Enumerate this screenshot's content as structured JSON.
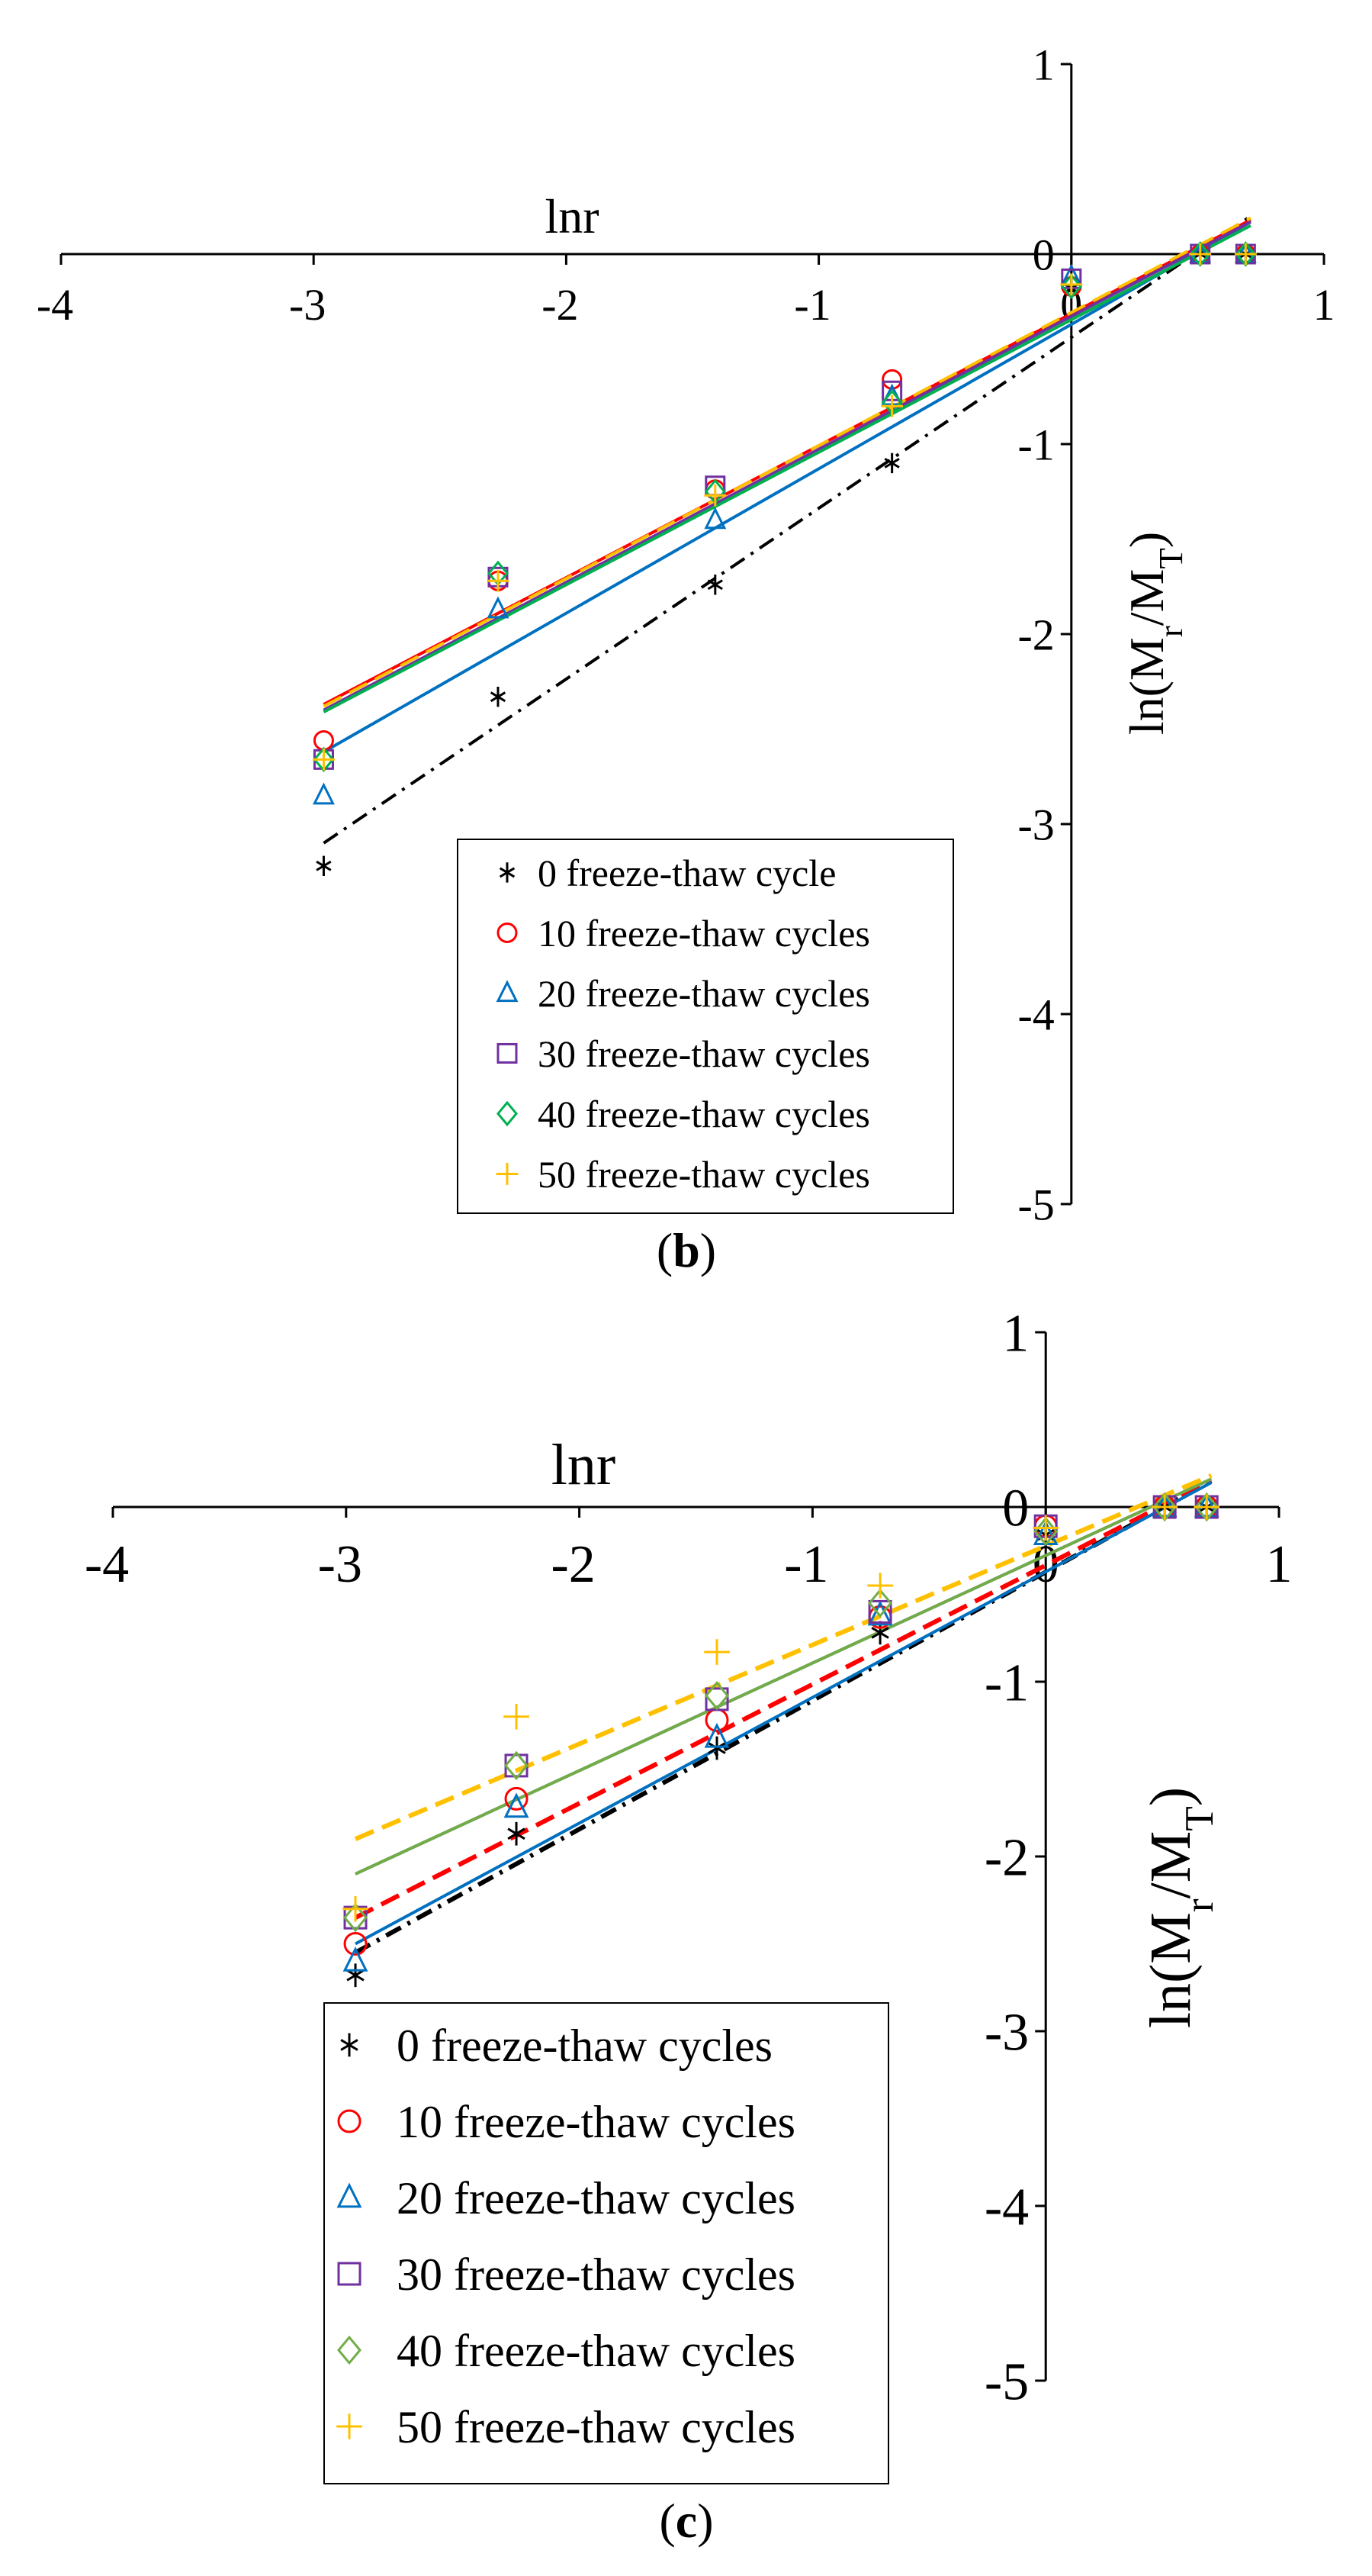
{
  "chart_data": [
    {
      "type": "scatter",
      "panel_label": "b",
      "xlabel": "lnr",
      "ylabel": "ln(M",
      "ylabel_sub1": "r",
      "ylabel_mid": "/M",
      "ylabel_sub2": "T",
      "ylabel_end": ")",
      "xlim": [
        -4,
        1
      ],
      "ylim": [
        -5,
        1
      ],
      "x_ticks": [
        "-4",
        "-3",
        "-2",
        "-1",
        "0",
        "1"
      ],
      "y_ticks": [
        "1",
        "0",
        "-1",
        "-2",
        "-3",
        "-4",
        "-5"
      ],
      "legend_position": "bottom-center",
      "x": [
        -2.96,
        -2.27,
        -1.41,
        -0.71,
        0.0,
        0.51,
        0.69
      ],
      "series": [
        {
          "name": "0 freeze-thaw cycle",
          "marker": "asterisk",
          "color": "#000000",
          "line": "dashdot",
          "values": [
            -3.22,
            -2.33,
            -1.74,
            -1.1,
            -0.18,
            0.0,
            0.0
          ],
          "fit": [
            -3.1,
            0.2
          ]
        },
        {
          "name": "10 freeze-thaw cycles",
          "marker": "circle",
          "color": "#ff0000",
          "line": "solid",
          "values": [
            -2.56,
            -1.72,
            -1.24,
            -0.66,
            -0.17,
            0.0,
            0.0
          ],
          "fit": [
            -2.37,
            0.18
          ]
        },
        {
          "name": "20 freeze-thaw cycles",
          "marker": "triangle",
          "color": "#0070c0",
          "line": "solid",
          "values": [
            -2.85,
            -1.87,
            -1.4,
            -0.75,
            -0.12,
            0.0,
            0.0
          ],
          "fit": [
            -2.62,
            0.17
          ]
        },
        {
          "name": "30 freeze-thaw cycles",
          "marker": "square",
          "color": "#7030a0",
          "line": "solid",
          "values": [
            -2.66,
            -1.7,
            -1.22,
            -0.72,
            -0.13,
            0.0,
            0.0
          ],
          "fit": [
            -2.4,
            0.17
          ]
        },
        {
          "name": "40 freeze-thaw cycles",
          "marker": "diamond",
          "color": "#00b050",
          "line": "solid",
          "values": [
            -2.66,
            -1.68,
            -1.25,
            -0.78,
            -0.17,
            0.0,
            0.0
          ],
          "fit": [
            -2.41,
            0.15
          ]
        },
        {
          "name": "50 freeze-thaw cycles",
          "marker": "plus",
          "color": "#ffc000",
          "line": "dashed",
          "values": [
            -2.66,
            -1.72,
            -1.27,
            -0.8,
            -0.16,
            0.0,
            0.0
          ],
          "fit": [
            -2.38,
            0.19
          ]
        }
      ]
    },
    {
      "type": "scatter",
      "panel_label": "c",
      "xlabel": "lnr",
      "ylabel": "ln(M",
      "ylabel_sub1": "r",
      "ylabel_mid": "/M",
      "ylabel_sub2": "T",
      "ylabel_end": ")",
      "xlim": [
        -4,
        1
      ],
      "ylim": [
        -5,
        1
      ],
      "x_ticks": [
        "-4",
        "-3",
        "-2",
        "-1",
        "0",
        "1"
      ],
      "y_ticks": [
        "1",
        "0",
        "-1",
        "-2",
        "-3",
        "-4",
        "-5"
      ],
      "legend_position": "bottom-left",
      "x": [
        -2.96,
        -2.27,
        -1.41,
        -0.71,
        0.0,
        0.51,
        0.69
      ],
      "series": [
        {
          "name": "0 freeze-thaw cycles",
          "marker": "asterisk",
          "color": "#000000",
          "line": "dashdot",
          "values": [
            -2.68,
            -1.87,
            -1.38,
            -0.72,
            -0.16,
            0.0,
            0.0
          ],
          "fit": [
            -2.55,
            0.15
          ]
        },
        {
          "name": "10 freeze-thaw cycles",
          "marker": "circle",
          "color": "#ff0000",
          "line": "dashed",
          "values": [
            -2.5,
            -1.67,
            -1.22,
            -0.63,
            -0.11,
            0.0,
            0.0
          ],
          "fit": [
            -2.35,
            0.15
          ]
        },
        {
          "name": "20 freeze-thaw cycles",
          "marker": "triangle",
          "color": "#0070c0",
          "line": "solid",
          "values": [
            -2.6,
            -1.72,
            -1.32,
            -0.62,
            -0.16,
            0.0,
            0.0
          ],
          "fit": [
            -2.5,
            0.14
          ]
        },
        {
          "name": "30 freeze-thaw cycles",
          "marker": "square",
          "color": "#7030a0",
          "line": "solid",
          "values": [
            -2.35,
            -1.48,
            -1.1,
            -0.6,
            -0.11,
            0.0,
            0.0
          ],
          "fit": [
            -2.1,
            0.16
          ]
        },
        {
          "name": "40 freeze-thaw cycles",
          "marker": "diamond",
          "color": "#70ad47",
          "line": "solid",
          "values": [
            -2.35,
            -1.48,
            -1.08,
            -0.55,
            -0.14,
            0.0,
            0.0
          ],
          "fit": [
            -2.1,
            0.16
          ]
        },
        {
          "name": "50 freeze-thaw cycles",
          "marker": "plus",
          "color": "#ffc000",
          "line": "dashed",
          "values": [
            -2.3,
            -1.2,
            -0.83,
            -0.45,
            -0.12,
            0.0,
            0.0
          ],
          "fit": [
            -1.9,
            0.18
          ]
        }
      ]
    }
  ]
}
